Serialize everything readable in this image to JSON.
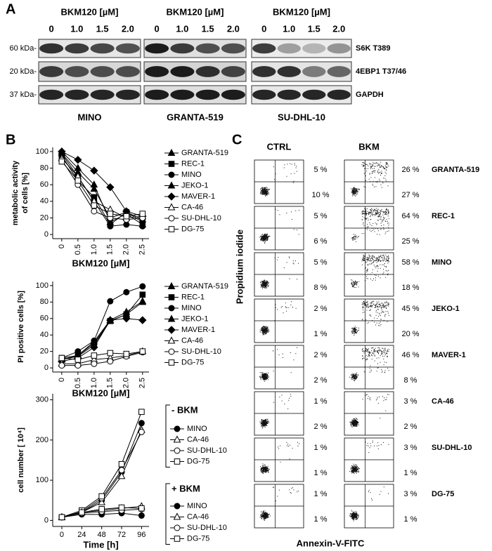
{
  "panel_letters": [
    "A",
    "B",
    "C"
  ],
  "blot": {
    "groups": [
      {
        "treatment": "BKM120 [µM]",
        "doses": [
          "0",
          "1.0",
          "1.5",
          "2.0"
        ],
        "cell_line": "MINO"
      },
      {
        "treatment": "BKM120 [µM]",
        "doses": [
          "0",
          "1.0",
          "1.5",
          "2.0"
        ],
        "cell_line": "GRANTA-519"
      },
      {
        "treatment": "BKM120 [µM]",
        "doses": [
          "0",
          "1.0",
          "1.5",
          "2.0"
        ],
        "cell_line": "SU-DHL-10"
      }
    ],
    "markers": [
      "60 kDa-",
      "20 kDa-",
      "37 kDa-"
    ],
    "proteins": [
      "S6K T389",
      "4EBP1 T37/46",
      "GAPDH"
    ]
  },
  "chart_data": [
    {
      "type": "line",
      "x": [
        0,
        0.5,
        1,
        1.5,
        2,
        2.5
      ],
      "xlim": [
        -0.28,
        2.7
      ],
      "xticks": [
        0,
        0.5,
        {
          "value": 1,
          "label": "1.0"
        },
        1.5,
        {
          "value": 2,
          "label": "2.0"
        },
        2.5
      ],
      "ylim": [
        -5,
        105
      ],
      "yticks": [
        0,
        20,
        40,
        60,
        80,
        100
      ],
      "x_label": "BKM120 [µM]",
      "y_label": [
        "metabolic activity",
        "of cells [%]"
      ],
      "series": [
        {
          "name": "GRANTA-519",
          "color": "#000000",
          "marker": "triangle",
          "filled": true,
          "values": [
            98,
            75,
            55,
            20,
            27,
            18
          ]
        },
        {
          "name": "REC-1",
          "color": "#000000",
          "marker": "square",
          "filled": true,
          "values": [
            95,
            65,
            45,
            12,
            27,
            15
          ]
        },
        {
          "name": "MINO",
          "color": "#000000",
          "marker": "circle",
          "filled": true,
          "values": [
            97,
            70,
            40,
            10,
            12,
            10
          ]
        },
        {
          "name": "JEKO-1",
          "color": "#000000",
          "marker": "triangle",
          "filled": true,
          "values": [
            100,
            80,
            60,
            15,
            25,
            12
          ]
        },
        {
          "name": "MAVER-1",
          "color": "#000000",
          "marker": "diamond",
          "filled": true,
          "values": [
            100,
            90,
            77,
            57,
            28,
            22
          ]
        },
        {
          "name": "CA-46",
          "color": "#000000",
          "marker": "triangle",
          "filled": false,
          "values": [
            92,
            70,
            40,
            30,
            20,
            22
          ]
        },
        {
          "name": "SU-DHL-10",
          "color": "#000000",
          "marker": "circle",
          "filled": false,
          "values": [
            90,
            60,
            28,
            20,
            18,
            20
          ]
        },
        {
          "name": "DG-75",
          "color": "#000000",
          "marker": "square",
          "filled": false,
          "values": [
            88,
            65,
            35,
            25,
            22,
            25
          ]
        }
      ]
    },
    {
      "type": "line",
      "x": [
        0,
        0.5,
        1,
        1.5,
        2,
        2.5
      ],
      "xlim": [
        -0.28,
        2.7
      ],
      "xticks": [
        0,
        0.5,
        {
          "value": 1,
          "label": "1.0"
        },
        1.5,
        {
          "value": 2,
          "label": "2.0"
        },
        2.5
      ],
      "ylim": [
        -5,
        105
      ],
      "yticks": [
        0,
        20,
        40,
        60,
        80,
        100
      ],
      "x_label": "BKM120 [µM]",
      "y_label": "PI positive cells [%]",
      "series": [
        {
          "name": "GRANTA-519",
          "color": "#000000",
          "marker": "triangle",
          "filled": true,
          "values": [
            10,
            14,
            28,
            57,
            65,
            80
          ]
        },
        {
          "name": "REC-1",
          "color": "#000000",
          "marker": "square",
          "filled": true,
          "values": [
            12,
            15,
            30,
            57,
            65,
            89
          ]
        },
        {
          "name": "MINO",
          "color": "#000000",
          "marker": "circle",
          "filled": true,
          "values": [
            12,
            20,
            33,
            81,
            92,
            99
          ]
        },
        {
          "name": "JEKO-1",
          "color": "#000000",
          "marker": "triangle",
          "filled": true,
          "values": [
            10,
            15,
            32,
            58,
            68,
            81
          ]
        },
        {
          "name": "MAVER-1",
          "color": "#000000",
          "marker": "diamond",
          "filled": true,
          "values": [
            8,
            12,
            25,
            58,
            60,
            58
          ]
        },
        {
          "name": "CA-46",
          "color": "#000000",
          "marker": "triangle",
          "filled": false,
          "values": [
            5,
            5,
            10,
            12,
            15,
            20
          ]
        },
        {
          "name": "SU-DHL-10",
          "color": "#000000",
          "marker": "circle",
          "filled": false,
          "values": [
            3,
            3,
            5,
            8,
            14,
            19
          ]
        },
        {
          "name": "DG-75",
          "color": "#000000",
          "marker": "square",
          "filled": false,
          "values": [
            12,
            10,
            15,
            18,
            17,
            20
          ]
        }
      ]
    },
    {
      "type": "line",
      "x": [
        0,
        24,
        48,
        72,
        96
      ],
      "xlim": [
        -11,
        105
      ],
      "xticks": [
        0,
        24,
        48,
        72,
        96
      ],
      "ylim": [
        -15,
        315
      ],
      "yticks": [
        0,
        100,
        200,
        300
      ],
      "x_label": "Time  [h]",
      "y_label": "cell number [ 10⁴]",
      "series_groups": [
        {
          "title": "- BKM",
          "series": [
            {
              "name": "MINO",
              "color": "#000000",
              "marker": "circle",
              "filled": true,
              "values": [
                8,
                20,
                50,
                120,
                242
              ]
            },
            {
              "name": "CA-46",
              "color": "#000000",
              "marker": "triangle",
              "filled": false,
              "values": [
                8,
                20,
                45,
                110,
                225
              ]
            },
            {
              "name": "SU-DHL-10",
              "color": "#000000",
              "marker": "circle",
              "filled": false,
              "values": [
                8,
                22,
                55,
                125,
                220
              ]
            },
            {
              "name": "DG-75",
              "color": "#000000",
              "marker": "square",
              "filled": false,
              "values": [
                8,
                25,
                60,
                140,
                270
              ]
            }
          ]
        },
        {
          "title": "+ BKM",
          "series": [
            {
              "name": "MINO",
              "color": "#000000",
              "marker": "circle",
              "filled": true,
              "values": [
                8,
                15,
                15,
                18,
                12
              ]
            },
            {
              "name": "CA-46",
              "color": "#000000",
              "marker": "triangle",
              "filled": false,
              "values": [
                8,
                20,
                25,
                30,
                35
              ]
            },
            {
              "name": "SU-DHL-10",
              "color": "#000000",
              "marker": "circle",
              "filled": false,
              "values": [
                8,
                18,
                22,
                25,
                28
              ]
            },
            {
              "name": "DG-75",
              "color": "#000000",
              "marker": "square",
              "filled": false,
              "values": [
                8,
                20,
                28,
                32,
                30
              ]
            }
          ]
        }
      ]
    }
  ],
  "flow": {
    "columns": [
      "CTRL",
      "BKM"
    ],
    "y_label": "Propidium iodide",
    "x_label": "Annexin-V-FITC",
    "rows": [
      {
        "name": "GRANTA-519",
        "ctrl": [
          "5 %",
          "10 %"
        ],
        "bkm": [
          "26 %",
          "27 %"
        ]
      },
      {
        "name": "REC-1",
        "ctrl": [
          "5 %",
          "6 %"
        ],
        "bkm": [
          "64 %",
          "25 %"
        ]
      },
      {
        "name": "MINO",
        "ctrl": [
          "5 %",
          "8 %"
        ],
        "bkm": [
          "58 %",
          "18 %"
        ]
      },
      {
        "name": "JEKO-1",
        "ctrl": [
          "2 %",
          "1 %"
        ],
        "bkm": [
          "45 %",
          "20 %"
        ]
      },
      {
        "name": "MAVER-1",
        "ctrl": [
          "2 %",
          "2 %"
        ],
        "bkm": [
          "46 %",
          "8 %"
        ]
      },
      {
        "name": "CA-46",
        "ctrl": [
          "1 %",
          "2 %"
        ],
        "bkm": [
          "3 %",
          "2 %"
        ]
      },
      {
        "name": "SU-DHL-10",
        "ctrl": [
          "1 %",
          "1 %"
        ],
        "bkm": [
          "3 %",
          "1 %"
        ]
      },
      {
        "name": "DG-75",
        "ctrl": [
          "1 %",
          "1 %"
        ],
        "bkm": [
          "3 %",
          "1 %"
        ]
      }
    ]
  }
}
